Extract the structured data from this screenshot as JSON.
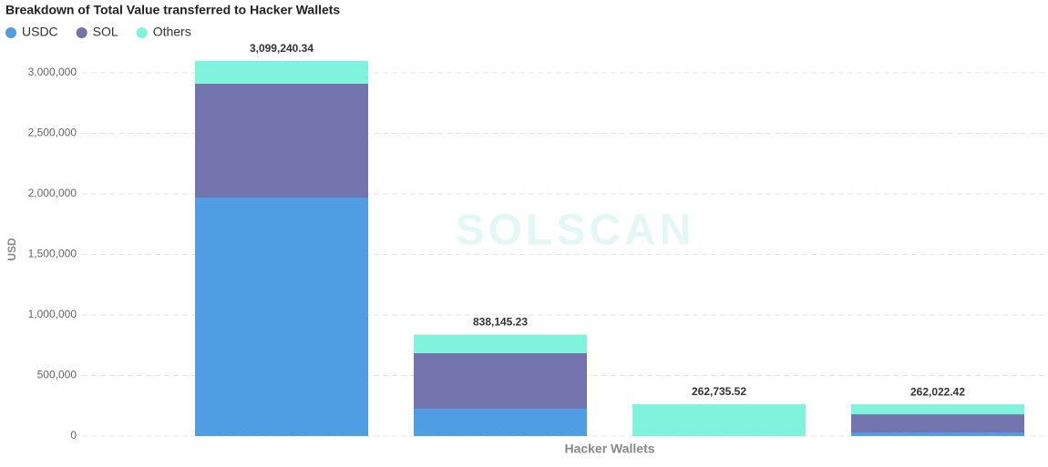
{
  "chart_data": {
    "type": "stacked-bar",
    "title": "Breakdown of Total Value transferred to Hacker Wallets",
    "watermark": "SOLSCAN",
    "x_label": "Hacker Wallets",
    "y_label": "USD",
    "categories": [
      null,
      null,
      null,
      null
    ],
    "series": [
      {
        "name": "USDC",
        "color": "#4f9de3",
        "values": [
          1970000,
          225000,
          0,
          30000
        ]
      },
      {
        "name": "SOL",
        "color": "#7373ae",
        "values": [
          940000,
          460000,
          0,
          150000
        ]
      },
      {
        "name": "Others",
        "color": "#80f3dc",
        "values": [
          189240,
          153145,
          262736,
          82022
        ]
      }
    ],
    "totals": [
      3099240.34,
      838145.23,
      262735.52,
      262022.42
    ],
    "total_labels": [
      "3,099,240.34",
      "838,145.23",
      "262,735.52",
      "262,022.42"
    ],
    "ylim": [
      0,
      3000000
    ],
    "yticks": [
      {
        "value": 0,
        "label": "0"
      },
      {
        "value": 500000,
        "label": "500,000"
      },
      {
        "value": 1000000,
        "label": "1,000,000"
      },
      {
        "value": 1500000,
        "label": "1,500,000"
      },
      {
        "value": 2000000,
        "label": "2,000,000"
      },
      {
        "value": 2500000,
        "label": "2,500,000"
      },
      {
        "value": 3000000,
        "label": "3,000,000"
      }
    ],
    "grid": true
  }
}
